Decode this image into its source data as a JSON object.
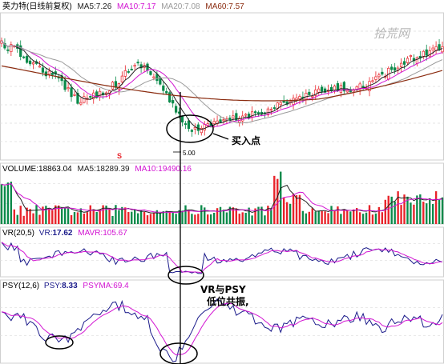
{
  "price_header": {
    "stock": "英力特(日线前复权)",
    "ma5_label": "MA5:",
    "ma5": "7.26",
    "ma10_label": "MA10:",
    "ma10": "7.17",
    "ma20_label": "MA20:",
    "ma20": "7.08",
    "ma60_label": "MA60:",
    "ma60": "7.57"
  },
  "watermark": "拾荒网",
  "low_marker": "5.00",
  "s_marker": "S",
  "volume_header": {
    "label": "VOLUME:",
    "value": "18863.04",
    "ma5_label": "MA5:",
    "ma5": "18289.39",
    "ma10_label": "MA10:",
    "ma10": "19490.16"
  },
  "vr_header": {
    "params": "VR(20,5)",
    "vr_label": "VR:",
    "vr": "17.62",
    "mavr_label": "MAVR:",
    "mavr": "105.67"
  },
  "psy_header": {
    "params": "PSY(12,6)",
    "psy_label": "PSY:",
    "psy": "8.33",
    "psyma_label": "PSYMA:",
    "psyma": "69.4"
  },
  "annotations": {
    "buy_point": "买入点",
    "resonance_line1": "VR与PSY",
    "resonance_line2": "低位共振,"
  },
  "colors": {
    "up": "#e8232a",
    "down": "#0a8a4a",
    "ma5": "#222222",
    "ma10": "#d214d2",
    "ma20": "#9a9a9a",
    "ma60": "#8b2c10",
    "vr": "#1a1a8a",
    "mavr": "#d214d2",
    "psy": "#1a1a8a",
    "psyma": "#d214d2",
    "grid": "#dcdcdc"
  },
  "chart_data": {
    "type": "candlestick",
    "title": "英力特(日线前复权)",
    "panels": [
      "price",
      "volume",
      "VR(20,5)",
      "PSY(12,6)"
    ],
    "price_low_label": 5.0,
    "indicators": {
      "MA5": 7.26,
      "MA10": 7.17,
      "MA20": 7.08,
      "MA60": 7.57,
      "VOLUME": 18863.04,
      "VOL_MA5": 18289.39,
      "VOL_MA10": 19490.16,
      "VR": 17.62,
      "MAVR": 105.67,
      "PSY": 8.33,
      "PSYMA": 69.4
    }
  }
}
